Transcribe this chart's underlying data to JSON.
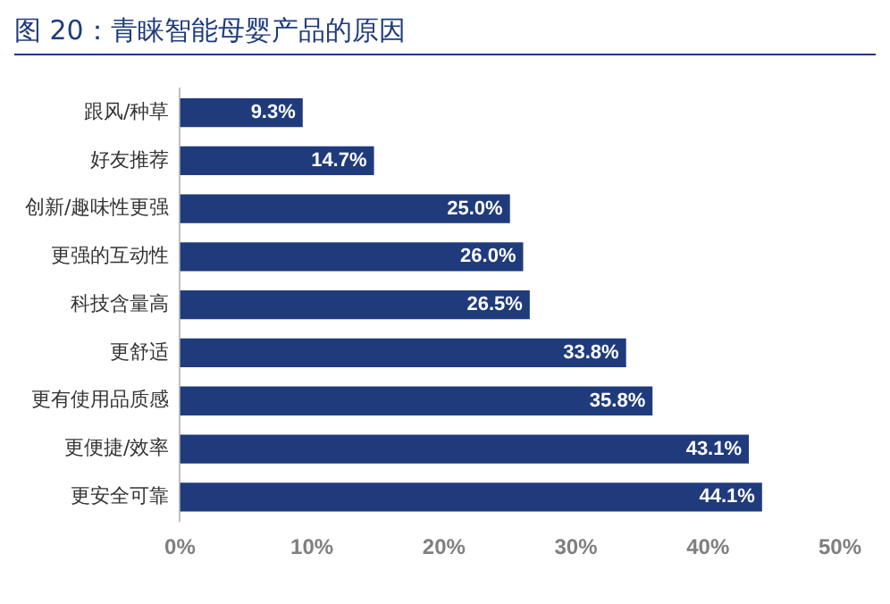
{
  "chart_data": {
    "type": "bar",
    "orientation": "horizontal",
    "title": "图 20：青睐智能母婴产品的原因",
    "categories": [
      "跟风/种草",
      "好友推荐",
      "创新/趣味性更强",
      "更强的互动性",
      "科技含量高",
      "更舒适",
      "更有使用品质感",
      "更便捷/效率",
      "更安全可靠"
    ],
    "values": [
      9.3,
      14.7,
      25.0,
      26.0,
      26.5,
      33.8,
      35.8,
      43.1,
      44.1
    ],
    "value_labels": [
      "9.3%",
      "14.7%",
      "25.0%",
      "26.0%",
      "26.5%",
      "33.8%",
      "35.8%",
      "43.1%",
      "44.1%"
    ],
    "color": "#1f3b7b",
    "xlim": [
      0,
      50
    ],
    "xticks": [
      {
        "value": 0,
        "label": "0%"
      },
      {
        "value": 10,
        "label": "10%"
      },
      {
        "value": 20,
        "label": "20%"
      },
      {
        "value": 30,
        "label": "30%"
      },
      {
        "value": 40,
        "label": "40%"
      },
      {
        "value": 50,
        "label": "50%"
      }
    ],
    "grid": false
  }
}
